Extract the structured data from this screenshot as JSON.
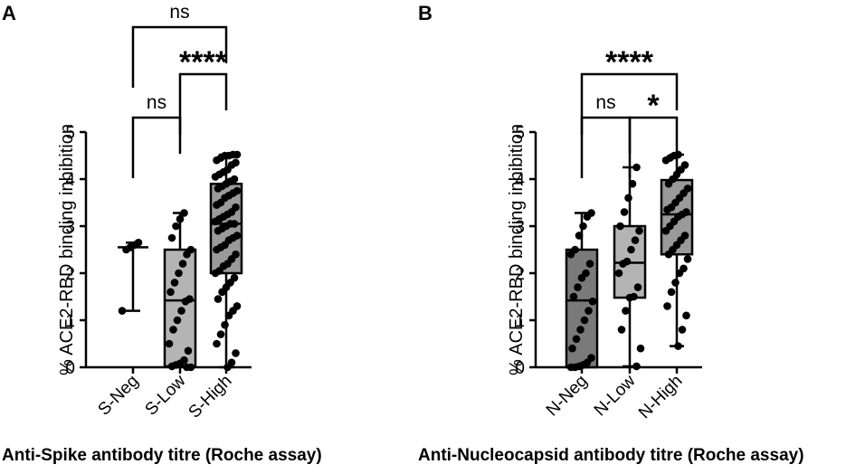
{
  "colors": {
    "axis": "#000000",
    "point": "#000000",
    "neg_fill": "#7a7a7a",
    "low_fill": "#b4b4b4",
    "high_fill": "#9a9a9a"
  },
  "chart_data": [
    {
      "type": "box",
      "panel": "A",
      "ylabel": "% ACE2-RBD binding inhibition",
      "xlabel": "Anti-Spike antibody titre (Roche assay)",
      "ylim": [
        0,
        5
      ],
      "yticks": [
        "0",
        "1",
        "2",
        "3",
        "4",
        "5"
      ],
      "categories": [
        "S-Neg",
        "S-Low",
        "S-High"
      ],
      "boxes": [
        {
          "name": "S-Neg",
          "min": 1.2,
          "q1": 2.55,
          "median": 2.55,
          "q3": 2.55,
          "max": 2.65,
          "fill": "none"
        },
        {
          "name": "S-Low",
          "min": 0.02,
          "q1": 0.02,
          "median": 1.42,
          "q3": 2.5,
          "max": 3.28,
          "fill": "#b4b4b4"
        },
        {
          "name": "S-High",
          "min": 0.0,
          "q1": 2.0,
          "median": 3.05,
          "q3": 3.9,
          "max": 4.52,
          "fill": "#9a9a9a"
        }
      ],
      "points": [
        [
          1.2,
          2.5,
          2.55,
          2.6,
          2.65
        ],
        [
          0.0,
          0.0,
          0.02,
          0.05,
          0.08,
          0.15,
          0.35,
          0.5,
          0.8,
          1.0,
          1.2,
          1.4,
          1.45,
          1.6,
          1.8,
          2.0,
          2.2,
          2.4,
          2.5,
          2.75,
          3.0,
          3.15,
          3.28
        ],
        [
          0.0,
          0.1,
          0.3,
          0.5,
          0.7,
          0.9,
          1.1,
          1.2,
          1.3,
          1.45,
          1.6,
          1.7,
          1.8,
          1.9,
          2.0,
          2.05,
          2.15,
          2.2,
          2.3,
          2.4,
          2.5,
          2.55,
          2.6,
          2.7,
          2.75,
          2.8,
          2.9,
          2.95,
          3.0,
          3.05,
          3.05,
          3.1,
          3.15,
          3.2,
          3.25,
          3.3,
          3.4,
          3.45,
          3.5,
          3.6,
          3.65,
          3.7,
          3.75,
          3.8,
          3.85,
          3.9,
          3.95,
          4.0,
          4.05,
          4.1,
          4.15,
          4.2,
          4.3,
          4.35,
          4.4,
          4.45,
          4.5,
          4.5,
          4.52,
          4.52
        ]
      ],
      "comparisons": [
        {
          "from": 0,
          "to": 2,
          "label": "ns",
          "level": 3
        },
        {
          "from": 1,
          "to": 2,
          "label": "****",
          "level": 2
        },
        {
          "from": 0,
          "to": 1,
          "label": "ns",
          "level": 1
        }
      ]
    },
    {
      "type": "box",
      "panel": "B",
      "ylabel": "% ACE2-RBD binding inhibition",
      "xlabel": "Anti-Nucleocapsid antibody titre (Roche assay)",
      "ylim": [
        0,
        5
      ],
      "yticks": [
        "0",
        "1",
        "2",
        "3",
        "4",
        "5"
      ],
      "categories": [
        "N-Neg",
        "N-Low",
        "N-High"
      ],
      "boxes": [
        {
          "name": "N-Neg",
          "min": 0.0,
          "q1": 0.0,
          "median": 1.42,
          "q3": 2.5,
          "max": 3.28,
          "fill": "#7a7a7a"
        },
        {
          "name": "N-Low",
          "min": 0.02,
          "q1": 1.48,
          "median": 2.22,
          "q3": 3.0,
          "max": 4.25,
          "fill": "#b4b4b4"
        },
        {
          "name": "N-High",
          "min": 0.45,
          "q1": 2.4,
          "median": 3.25,
          "q3": 3.98,
          "max": 4.52,
          "fill": "#9a9a9a"
        }
      ],
      "points": [
        [
          0.0,
          0.0,
          0.02,
          0.05,
          0.1,
          0.2,
          0.4,
          0.6,
          0.8,
          1.0,
          1.2,
          1.4,
          1.5,
          1.7,
          1.9,
          2.0,
          2.2,
          2.4,
          2.5,
          2.8,
          3.0,
          3.2,
          3.28
        ],
        [
          0.02,
          0.4,
          0.8,
          1.2,
          1.48,
          1.5,
          1.7,
          2.0,
          2.2,
          2.25,
          2.5,
          2.7,
          2.9,
          3.0,
          3.3,
          3.6,
          3.9,
          4.25
        ],
        [
          0.45,
          0.8,
          1.1,
          1.3,
          1.6,
          1.8,
          2.0,
          2.1,
          2.3,
          2.4,
          2.5,
          2.6,
          2.7,
          2.8,
          2.9,
          3.0,
          3.1,
          3.2,
          3.25,
          3.3,
          3.35,
          3.4,
          3.5,
          3.6,
          3.7,
          3.8,
          3.9,
          4.0,
          4.1,
          4.2,
          4.3,
          4.4,
          4.45,
          4.5,
          4.52
        ]
      ],
      "comparisons": [
        {
          "from": 0,
          "to": 2,
          "label": "****",
          "level": 2
        },
        {
          "from": 0,
          "to": 1,
          "label": "ns",
          "level": 1
        },
        {
          "from": 1,
          "to": 2,
          "label": "*",
          "level": 1
        }
      ]
    }
  ]
}
